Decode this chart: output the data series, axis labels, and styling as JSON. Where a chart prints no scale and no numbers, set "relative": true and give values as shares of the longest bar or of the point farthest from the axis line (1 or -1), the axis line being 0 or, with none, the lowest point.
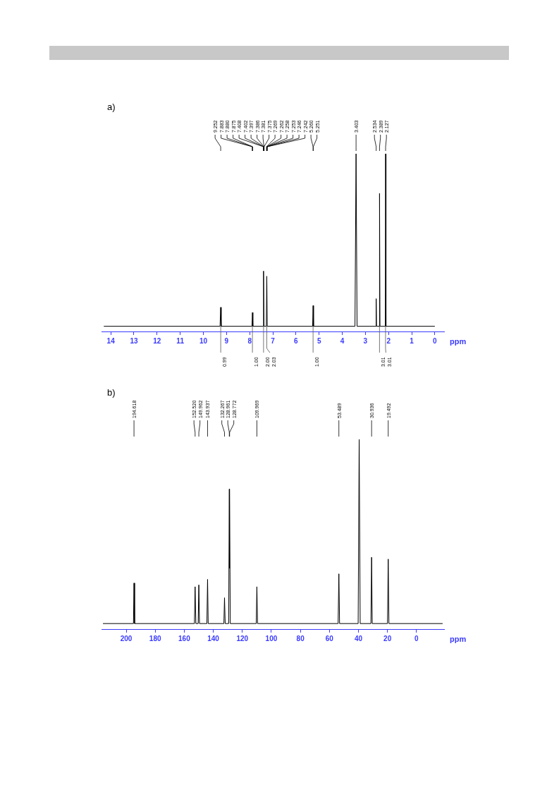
{
  "chart_data": [
    {
      "type": "line",
      "title": "a)",
      "xlabel": "ppm",
      "relative": true,
      "grid": false,
      "legend": false,
      "tick_labels": "x",
      "xlim": [
        14.4,
        -0.4
      ],
      "xticks": [
        14,
        13,
        12,
        11,
        10,
        9,
        8,
        7,
        6,
        5,
        4,
        3,
        2,
        1,
        0
      ],
      "series": [
        {
          "color": "#000000",
          "x": [
            14.3,
            9.28,
            9.252,
            9.23,
            7.9,
            7.88,
            7.86,
            7.42,
            7.4,
            7.38,
            7.28,
            7.26,
            7.24,
            5.28,
            5.26,
            5.24,
            3.45,
            3.403,
            3.36,
            2.55,
            2.534,
            2.52,
            2.4,
            2.389,
            2.37,
            2.14,
            2.127,
            2.11,
            0
          ],
          "values": [
            0,
            0,
            0.11,
            0,
            0,
            0.08,
            0,
            0,
            0.32,
            0,
            0,
            0.29,
            0,
            0,
            0.12,
            0,
            0,
            1,
            0,
            0,
            0.16,
            0,
            0,
            0.77,
            0,
            0,
            1,
            0,
            0
          ]
        }
      ],
      "annotations": [
        {
          "text": "9.252",
          "x": 9.252
        },
        {
          "text": "7.883",
          "x": 7.883
        },
        {
          "text": "7.880",
          "x": 7.88
        },
        {
          "text": "7.875",
          "x": 7.875
        },
        {
          "text": "7.408",
          "x": 7.408
        },
        {
          "text": "7.402",
          "x": 7.402
        },
        {
          "text": "7.397",
          "x": 7.397
        },
        {
          "text": "7.386",
          "x": 7.386
        },
        {
          "text": "7.381",
          "x": 7.381
        },
        {
          "text": "7.375",
          "x": 7.375
        },
        {
          "text": "7.269",
          "x": 7.269
        },
        {
          "text": "7.262",
          "x": 7.262
        },
        {
          "text": "7.258",
          "x": 7.258
        },
        {
          "text": "7.253",
          "x": 7.253
        },
        {
          "text": "7.246",
          "x": 7.246
        },
        {
          "text": "7.242",
          "x": 7.242
        },
        {
          "text": "5.260",
          "x": 5.26
        },
        {
          "text": "5.251",
          "x": 5.251
        },
        {
          "text": "3.403",
          "x": 3.403
        },
        {
          "text": "2.534",
          "x": 2.534
        },
        {
          "text": "2.389",
          "x": 2.389
        },
        {
          "text": "2.127",
          "x": 2.127
        },
        {
          "text": "0.99",
          "x": 9.25,
          "y": 0
        },
        {
          "text": "1.00",
          "x": 7.88,
          "y": 0
        },
        {
          "text": "2.00",
          "x": 7.4,
          "y": 0
        },
        {
          "text": "2.03",
          "x": 7.26,
          "y": 0
        },
        {
          "text": "1.00",
          "x": 5.26,
          "y": 0
        },
        {
          "text": "3.01",
          "x": 2.39,
          "y": 0
        },
        {
          "text": "3.01",
          "x": 2.13,
          "y": 0
        }
      ]
    },
    {
      "type": "line",
      "title": "b)",
      "xlabel": "ppm",
      "relative": true,
      "grid": false,
      "legend": false,
      "tick_labels": "x",
      "xlim": [
        217,
        -19
      ],
      "xticks": [
        200,
        180,
        160,
        140,
        120,
        100,
        80,
        60,
        40,
        20,
        0
      ],
      "series": [
        {
          "color": "#000000",
          "x": [
            216,
            195,
            194.618,
            194.2,
            153,
            152.52,
            152,
            150.4,
            149.962,
            149.5,
            144.4,
            143.937,
            143.5,
            132.7,
            132.267,
            131.8,
            129.4,
            128.961,
            128.85,
            128.772,
            128.3,
            110.4,
            109.969,
            109.5,
            54,
            53.489,
            53,
            40.2,
            39.5,
            38.8,
            31.4,
            30.936,
            30.5,
            20,
            19.492,
            19,
            -18
          ],
          "values": [
            0,
            0,
            0.22,
            0,
            0,
            0.2,
            0,
            0,
            0.21,
            0,
            0,
            0.24,
            0,
            0,
            0.14,
            0,
            0,
            0.73,
            0.3,
            0.72,
            0,
            0,
            0.2,
            0,
            0,
            0.27,
            0,
            0,
            1,
            0,
            0,
            0.36,
            0,
            0,
            0.35,
            0,
            0
          ]
        }
      ],
      "annotations": [
        {
          "text": "194.618",
          "x": 194.618
        },
        {
          "text": "152.520",
          "x": 152.52
        },
        {
          "text": "149.962",
          "x": 149.962
        },
        {
          "text": "143.937",
          "x": 143.937
        },
        {
          "text": "132.267",
          "x": 132.267
        },
        {
          "text": "128.961",
          "x": 128.961
        },
        {
          "text": "128.772",
          "x": 128.772
        },
        {
          "text": "109.969",
          "x": 109.969
        },
        {
          "text": "53.489",
          "x": 53.489
        },
        {
          "text": "30.936",
          "x": 30.936
        },
        {
          "text": "19.492",
          "x": 19.492
        }
      ]
    }
  ]
}
